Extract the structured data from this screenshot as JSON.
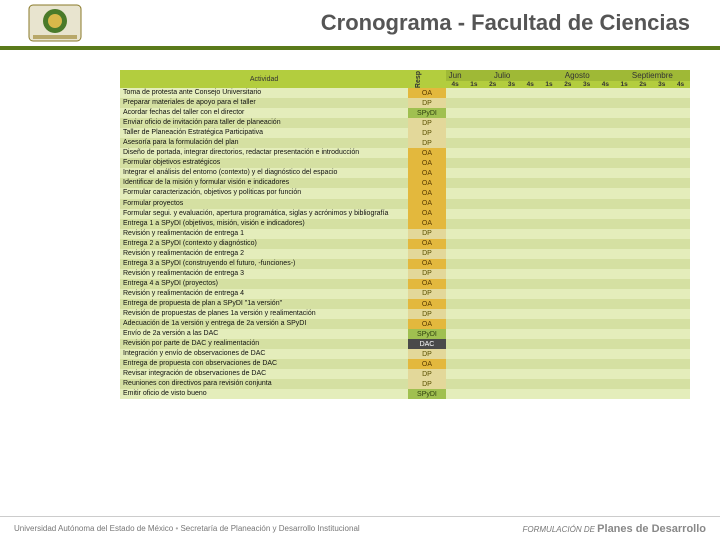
{
  "title": "Cronograma - Facultad de Ciencias",
  "footer_left_a": "Universidad Autónoma del Estado de México",
  "footer_left_b": "Secretaría de Planeación y Desarrollo Institucional",
  "footer_right_a": "FORMULACIÓN DE",
  "footer_right_b": "Planes de Desarrollo",
  "colors": {
    "accent_bar": "#5a7a1a",
    "header_bg": "#b3cd3e",
    "header_month_bg": "#9fb936",
    "row_even": "#e4edbb",
    "row_odd": "#d5e0a2",
    "resp_oa_bg": "#e3b83d",
    "resp_oa_fg": "#5a3b00",
    "resp_dp_bg": "#e3d89a",
    "resp_dp_fg": "#5a5000",
    "resp_spydi_bg": "#a0c050",
    "resp_spydi_fg": "#304010",
    "resp_dac_bg": "#4a4a4a",
    "resp_dac_fg": "#ffffff"
  },
  "months": [
    {
      "label": "Jun",
      "weeks": [
        "4s"
      ]
    },
    {
      "label": "Julio",
      "weeks": [
        "1s",
        "2s",
        "3s",
        "4s"
      ]
    },
    {
      "label": "Agosto",
      "weeks": [
        "1s",
        "2s",
        "3s",
        "4s"
      ]
    },
    {
      "label": "Septiembre",
      "weeks": [
        "1s",
        "2s",
        "3s",
        "4s"
      ]
    }
  ],
  "hdr_activity": "Actividad",
  "hdr_resp": "Resp",
  "resp_styles": {
    "OA": {
      "bg": "#e3b83d",
      "fg": "#5a3b00"
    },
    "DP": {
      "bg": "#e3d89a",
      "fg": "#5a5000"
    },
    "SPyDI": {
      "bg": "#a0c050",
      "fg": "#304010"
    },
    "DAC": {
      "bg": "#4a4a4a",
      "fg": "#ffffff"
    }
  },
  "rows": [
    {
      "activity": "Toma de protesta ante Consejo Universitario",
      "resp": "OA"
    },
    {
      "activity": "Preparar materiales de apoyo para el taller",
      "resp": "DP"
    },
    {
      "activity": "Acordar fechas del taller con el director",
      "resp": "SPyDI"
    },
    {
      "activity": "Enviar oficio de invitación para taller de planeación",
      "resp": "DP"
    },
    {
      "activity": "Taller de Planeación Estratégica Participativa",
      "resp": "DP"
    },
    {
      "activity": "Asesoría para la formulación del plan",
      "resp": "DP"
    },
    {
      "activity": "Diseño de portada, integrar directorios, redactar presentación e introducción",
      "resp": "OA"
    },
    {
      "activity": "Formular objetivos estratégicos",
      "resp": "OA"
    },
    {
      "activity": "Integrar el análisis del entorno (contexto) y el diagnóstico del espacio",
      "resp": "OA"
    },
    {
      "activity": "Identificar de la misión y formular visión e indicadores",
      "resp": "OA"
    },
    {
      "activity": "Formular caracterización, objetivos y políticas por función",
      "resp": "OA"
    },
    {
      "activity": "Formular proyectos",
      "resp": "OA"
    },
    {
      "activity": "Formular segui. y evaluación, apertura programática, siglas y acrónimos y bibliografía",
      "resp": "OA"
    },
    {
      "activity": "Entrega 1 a SPyDI (objetivos, misión, visión e indicadores)",
      "resp": "OA"
    },
    {
      "activity": "Revisión y realimentación de entrega 1",
      "resp": "DP"
    },
    {
      "activity": "Entrega 2 a SPyDI (contexto y diagnóstico)",
      "resp": "OA"
    },
    {
      "activity": "Revisión y realimentación de entrega 2",
      "resp": "DP"
    },
    {
      "activity": "Entrega 3 a SPyDI (construyendo el futuro, -funciones-)",
      "resp": "OA"
    },
    {
      "activity": "Revisión y realimentación de entrega 3",
      "resp": "DP"
    },
    {
      "activity": "Entrega 4 a SPyDI (proyectos)",
      "resp": "OA"
    },
    {
      "activity": "Revisión y realimentación de entrega 4",
      "resp": "DP"
    },
    {
      "activity": "Entrega de propuesta de plan a SPyDI \"1a versión\"",
      "resp": "OA"
    },
    {
      "activity": "Revisión de propuestas de planes 1a versión y realimentación",
      "resp": "DP"
    },
    {
      "activity": "Adecuación de 1a versión y entrega de 2a versión a SPyDI",
      "resp": "OA"
    },
    {
      "activity": "Envío de 2a versión a las DAC",
      "resp": "SPyDI"
    },
    {
      "activity": "Revisión por parte de DAC y realimentación",
      "resp": "DAC"
    },
    {
      "activity": "Integración y envío de observaciones de DAC",
      "resp": "DP"
    },
    {
      "activity": "Entrega de propuesta con observaciones de DAC",
      "resp": "OA"
    },
    {
      "activity": "Revisar integración de observaciones de DAC",
      "resp": "DP"
    },
    {
      "activity": "Reuniones con directivos para revisión conjunta",
      "resp": "DP"
    },
    {
      "activity": "Emitir oficio de visto bueno",
      "resp": "SPyDI"
    }
  ]
}
